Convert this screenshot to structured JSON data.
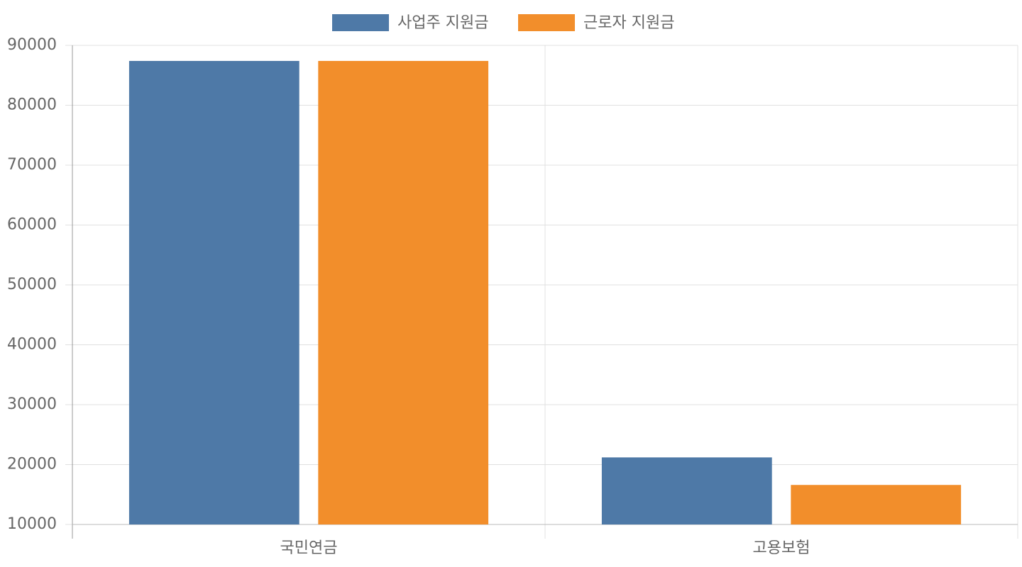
{
  "chart_data": {
    "type": "bar",
    "categories": [
      "국민연금",
      "고용보험"
    ],
    "series": [
      {
        "name": "사업주 지원금",
        "color": "#4e79a7",
        "values": [
          87400,
          21200
        ]
      },
      {
        "name": "근로자 지원금",
        "color": "#f28e2b",
        "values": [
          87400,
          16600
        ]
      }
    ],
    "ylim": [
      10000,
      90000
    ],
    "yticks": [
      10000,
      20000,
      30000,
      40000,
      50000,
      60000,
      70000,
      80000,
      90000
    ],
    "grid": true,
    "legend": "top"
  }
}
